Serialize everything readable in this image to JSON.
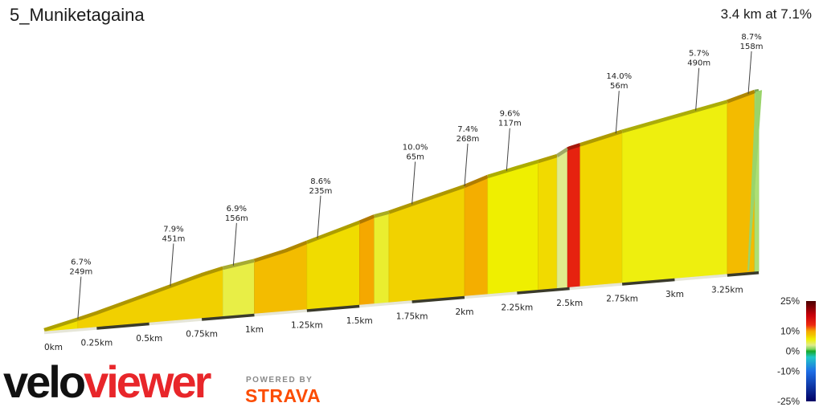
{
  "header": {
    "title": "5_Muniketagaina",
    "summary": "3.4 km at 7.1%"
  },
  "chart_data": {
    "type": "area",
    "title": "5_Muniketagaina",
    "subtitle": "3.4 km at 7.1%",
    "x_unit": "km",
    "x_range": [
      0,
      3.4
    ],
    "profile": [
      {
        "km": 0.0,
        "elev": 0.0
      },
      {
        "km": 0.16,
        "elev": 10.7
      },
      {
        "km": 0.25,
        "elev": 17.2
      },
      {
        "km": 0.5,
        "elev": 37.0
      },
      {
        "km": 0.75,
        "elev": 56.8
      },
      {
        "km": 0.85,
        "elev": 63.5
      },
      {
        "km": 1.0,
        "elev": 70.0
      },
      {
        "km": 1.15,
        "elev": 80.0
      },
      {
        "km": 1.25,
        "elev": 88.8
      },
      {
        "km": 1.5,
        "elev": 110.0
      },
      {
        "km": 1.57,
        "elev": 116.5
      },
      {
        "km": 1.64,
        "elev": 120.0
      },
      {
        "km": 1.75,
        "elev": 128.3
      },
      {
        "km": 2.0,
        "elev": 146.8
      },
      {
        "km": 2.11,
        "elev": 157.3
      },
      {
        "km": 2.25,
        "elev": 166.0
      },
      {
        "km": 2.35,
        "elev": 172.0
      },
      {
        "km": 2.44,
        "elev": 177.5
      },
      {
        "km": 2.49,
        "elev": 185.4
      },
      {
        "km": 2.5,
        "elev": 186.5
      },
      {
        "km": 2.75,
        "elev": 203.0
      },
      {
        "km": 3.0,
        "elev": 217.3
      },
      {
        "km": 3.25,
        "elev": 231.5
      },
      {
        "km": 3.38,
        "elev": 242.0
      },
      {
        "km": 3.4,
        "elev": 242.5
      }
    ],
    "segments": [
      {
        "from": 0.0,
        "to": 0.16,
        "grade": 6.7
      },
      {
        "from": 0.16,
        "to": 0.85,
        "grade": 7.5
      },
      {
        "from": 0.85,
        "to": 1.0,
        "grade": 4.5
      },
      {
        "from": 1.0,
        "to": 1.25,
        "grade": 8.6
      },
      {
        "from": 1.25,
        "to": 1.5,
        "grade": 6.9
      },
      {
        "from": 1.5,
        "to": 1.57,
        "grade": 10.0
      },
      {
        "from": 1.57,
        "to": 1.64,
        "grade": 5.0
      },
      {
        "from": 1.64,
        "to": 2.0,
        "grade": 7.4
      },
      {
        "from": 2.0,
        "to": 2.11,
        "grade": 9.6
      },
      {
        "from": 2.11,
        "to": 2.35,
        "grade": 6.0
      },
      {
        "from": 2.35,
        "to": 2.44,
        "grade": 7.0
      },
      {
        "from": 2.44,
        "to": 2.49,
        "grade": 3.0
      },
      {
        "from": 2.49,
        "to": 2.55,
        "grade": 14.0
      },
      {
        "from": 2.55,
        "to": 2.75,
        "grade": 7.2
      },
      {
        "from": 2.75,
        "to": 3.25,
        "grade": 5.7
      },
      {
        "from": 3.25,
        "to": 3.38,
        "grade": 8.7
      },
      {
        "from": 3.38,
        "to": 3.4,
        "grade": 2.0
      }
    ],
    "annotations": [
      {
        "km": 0.16,
        "grade_label": "6.7%",
        "length_label": "249m"
      },
      {
        "km": 0.6,
        "grade_label": "7.9%",
        "length_label": "451m"
      },
      {
        "km": 0.9,
        "grade_label": "6.9%",
        "length_label": "156m"
      },
      {
        "km": 1.3,
        "grade_label": "8.6%",
        "length_label": "235m"
      },
      {
        "km": 1.75,
        "grade_label": "10.0%",
        "length_label": "65m"
      },
      {
        "km": 2.0,
        "grade_label": "7.4%",
        "length_label": "268m"
      },
      {
        "km": 2.2,
        "grade_label": "9.6%",
        "length_label": "117m"
      },
      {
        "km": 2.72,
        "grade_label": "14.0%",
        "length_label": "56m"
      },
      {
        "km": 3.1,
        "grade_label": "5.7%",
        "length_label": "490m"
      },
      {
        "km": 3.35,
        "grade_label": "8.7%",
        "length_label": "158m"
      }
    ],
    "x_ticks": [
      {
        "km": 0.0,
        "label": "0km"
      },
      {
        "km": 0.25,
        "label": "0.25km"
      },
      {
        "km": 0.5,
        "label": "0.5km"
      },
      {
        "km": 0.75,
        "label": "0.75km"
      },
      {
        "km": 1.0,
        "label": "1km"
      },
      {
        "km": 1.25,
        "label": "1.25km"
      },
      {
        "km": 1.5,
        "label": "1.5km"
      },
      {
        "km": 1.75,
        "label": "1.75km"
      },
      {
        "km": 2.0,
        "label": "2km"
      },
      {
        "km": 2.25,
        "label": "2.25km"
      },
      {
        "km": 2.5,
        "label": "2.5km"
      },
      {
        "km": 2.75,
        "label": "2.75km"
      },
      {
        "km": 3.0,
        "label": "3km"
      },
      {
        "km": 3.25,
        "label": "3.25km"
      }
    ],
    "color_scale": {
      "ticks": [
        {
          "value": 25,
          "label": "25%"
        },
        {
          "value": 10,
          "label": "10%"
        },
        {
          "value": 0,
          "label": "0%"
        },
        {
          "value": -10,
          "label": "-10%"
        },
        {
          "value": -25,
          "label": "-25%"
        }
      ],
      "stops": [
        {
          "value": 25,
          "color": "#4a0000"
        },
        {
          "value": 18,
          "color": "#c8000a"
        },
        {
          "value": 13,
          "color": "#ee2a10"
        },
        {
          "value": 10,
          "color": "#f5a800"
        },
        {
          "value": 8,
          "color": "#f2c500"
        },
        {
          "value": 6,
          "color": "#efef00"
        },
        {
          "value": 3,
          "color": "#e0ec8c"
        },
        {
          "value": 1,
          "color": "#7cd45c"
        },
        {
          "value": 0,
          "color": "#16a828"
        },
        {
          "value": -3,
          "color": "#20c8c8"
        },
        {
          "value": -10,
          "color": "#1e6ee6"
        },
        {
          "value": -25,
          "color": "#000064"
        }
      ]
    }
  },
  "branding": {
    "veloviewer_part1": "velo",
    "veloviewer_part2": "viewer",
    "powered_by": "POWERED BY",
    "strava": "STRAVA"
  }
}
